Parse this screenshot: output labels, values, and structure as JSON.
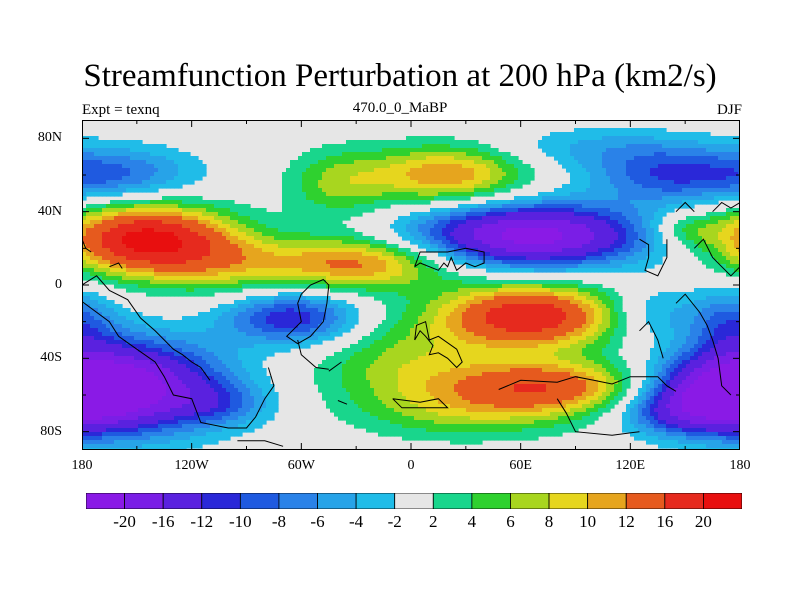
{
  "title": "Streamfunction Perturbation at 200 hPa (km2/s)",
  "left_subtitle": "Expt = texnq",
  "center_subtitle": "470.0_0_MaBP",
  "right_subtitle": "DJF",
  "lat_labels": [
    "80N",
    "40N",
    "0",
    "40S",
    "80S"
  ],
  "lat_values": [
    80,
    40,
    0,
    -40,
    -80
  ],
  "lon_labels": [
    "180",
    "120W",
    "60W",
    "0",
    "60E",
    "120E",
    "180"
  ],
  "lon_values": [
    -180,
    -120,
    -60,
    0,
    60,
    120,
    180
  ],
  "colorbar": {
    "labels": [
      "-20",
      "-16",
      "-12",
      "-10",
      "-8",
      "-6",
      "-4",
      "-2",
      "2",
      "4",
      "6",
      "8",
      "10",
      "12",
      "16",
      "20"
    ],
    "colors": [
      "#8a1ae6",
      "#7a1ee6",
      "#5a21df",
      "#2a28d8",
      "#1f5ae0",
      "#2a82e8",
      "#27a3e8",
      "#20bce8",
      "#e6e6e6",
      "#19d68c",
      "#2fd12f",
      "#a8d61f",
      "#e6d61e",
      "#e6a51e",
      "#e65a1e",
      "#e62a1e",
      "#e80f0f"
    ]
  },
  "fields": {
    "lon_range": [
      -180,
      180
    ],
    "lat_range": [
      -90,
      90
    ],
    "background_color": "#e6e6e6",
    "blobs": [
      {
        "lon": -146,
        "lat": 25,
        "amp": 21,
        "rx": 48,
        "ry": 20
      },
      {
        "lon": -105,
        "lat": 12,
        "amp": 6,
        "rx": 40,
        "ry": 18
      },
      {
        "lon": -30,
        "lat": 12,
        "amp": 13,
        "rx": 55,
        "ry": 15
      },
      {
        "lon": 20,
        "lat": 60,
        "amp": 12,
        "rx": 45,
        "ry": 17
      },
      {
        "lon": -40,
        "lat": 55,
        "amp": 6,
        "rx": 30,
        "ry": 20
      },
      {
        "lon": 150,
        "lat": 30,
        "amp": 5,
        "rx": 20,
        "ry": 10
      },
      {
        "lon": 65,
        "lat": -17,
        "amp": 19,
        "rx": 50,
        "ry": 18
      },
      {
        "lon": 75,
        "lat": -55,
        "amp": 14,
        "rx": 55,
        "ry": 15
      },
      {
        "lon": 0,
        "lat": -45,
        "amp": 7,
        "rx": 55,
        "ry": 28
      },
      {
        "lon": 40,
        "lat": -70,
        "amp": 5,
        "rx": 60,
        "ry": 15
      },
      {
        "lon": 65,
        "lat": 27,
        "amp": -22,
        "rx": 65,
        "ry": 18
      },
      {
        "lon": 140,
        "lat": 60,
        "amp": -9,
        "rx": 45,
        "ry": 16
      },
      {
        "lon": -160,
        "lat": 60,
        "amp": -8,
        "rx": 45,
        "ry": 16
      },
      {
        "lon": -155,
        "lat": -55,
        "amp": -20,
        "rx": 55,
        "ry": 26
      },
      {
        "lon": -65,
        "lat": -18,
        "amp": -12,
        "rx": 38,
        "ry": 15
      },
      {
        "lon": 170,
        "lat": -60,
        "amp": -18,
        "rx": 40,
        "ry": 20
      },
      {
        "lon": 175,
        "lat": -20,
        "amp": -8,
        "rx": 25,
        "ry": 20
      },
      {
        "lon": 130,
        "lat": -15,
        "amp": -5,
        "rx": 25,
        "ry": 15
      },
      {
        "lon": 140,
        "lat": -70,
        "amp": -6,
        "rx": 30,
        "ry": 12
      },
      {
        "lon": -105,
        "lat": -65,
        "amp": -5,
        "rx": 30,
        "ry": 12
      },
      {
        "lon": 100,
        "lat": 75,
        "amp": -4,
        "rx": 60,
        "ry": 12
      }
    ]
  },
  "coastlines": [
    [
      [
        -180,
        -9
      ],
      [
        -165,
        -20
      ],
      [
        -160,
        -28
      ],
      [
        -150,
        -35
      ],
      [
        -140,
        -42
      ],
      [
        -135,
        -50
      ],
      [
        -130,
        -60
      ],
      [
        -120,
        -62
      ],
      [
        -115,
        -75
      ],
      [
        -100,
        -78
      ],
      [
        -90,
        -78
      ],
      [
        -85,
        -72
      ],
      [
        -80,
        -62
      ],
      [
        -75,
        -55
      ],
      [
        -78,
        -45
      ]
    ],
    [
      [
        -180,
        0
      ],
      [
        -172,
        5
      ],
      [
        -165,
        -3
      ],
      [
        -155,
        -8
      ],
      [
        -148,
        -18
      ],
      [
        -140,
        -25
      ],
      [
        -135,
        -30
      ],
      [
        -130,
        -35
      ],
      [
        -125,
        -38
      ],
      [
        -120,
        -42
      ],
      [
        -115,
        -45
      ],
      [
        -110,
        -52
      ]
    ],
    [
      [
        -95,
        -85
      ],
      [
        -80,
        -85
      ],
      [
        -70,
        -88
      ]
    ],
    [
      [
        -180,
        25
      ],
      [
        -178,
        20
      ],
      [
        -175,
        18
      ]
    ],
    [
      [
        -165,
        10
      ],
      [
        -160,
        12
      ],
      [
        -158,
        9
      ]
    ],
    [
      [
        -60,
        -5
      ],
      [
        -55,
        0
      ],
      [
        -48,
        3
      ],
      [
        -45,
        0
      ],
      [
        -46,
        -10
      ],
      [
        -48,
        -20
      ],
      [
        -55,
        -28
      ],
      [
        -62,
        -32
      ],
      [
        -68,
        -28
      ],
      [
        -60,
        -20
      ],
      [
        -62,
        -10
      ],
      [
        -60,
        -5
      ]
    ],
    [
      [
        -62,
        -30
      ],
      [
        -60,
        -38
      ],
      [
        -52,
        -45
      ],
      [
        -45,
        -46
      ]
    ],
    [
      [
        -45,
        -47
      ],
      [
        -38,
        -42
      ]
    ],
    [
      [
        -40,
        -63
      ],
      [
        -35,
        -65
      ]
    ],
    [
      [
        -10,
        -62
      ],
      [
        -5,
        -67
      ],
      [
        20,
        -67
      ],
      [
        15,
        -62
      ],
      [
        5,
        -64
      ],
      [
        -10,
        -62
      ]
    ],
    [
      [
        2,
        -30
      ],
      [
        5,
        -25
      ],
      [
        8,
        -28
      ],
      [
        12,
        -33
      ],
      [
        10,
        -38
      ],
      [
        15,
        -37
      ],
      [
        20,
        -40
      ],
      [
        25,
        -45
      ],
      [
        28,
        -42
      ],
      [
        25,
        -35
      ],
      [
        15,
        -28
      ],
      [
        10,
        -30
      ],
      [
        8,
        -20
      ],
      [
        3,
        -22
      ],
      [
        2,
        -30
      ]
    ],
    [
      [
        2,
        10
      ],
      [
        5,
        12
      ],
      [
        10,
        10
      ],
      [
        15,
        8
      ],
      [
        18,
        12
      ],
      [
        20,
        10
      ],
      [
        22,
        15
      ],
      [
        25,
        8
      ],
      [
        30,
        12
      ],
      [
        35,
        10
      ],
      [
        40,
        12
      ],
      [
        40,
        18
      ],
      [
        30,
        20
      ],
      [
        20,
        18
      ],
      [
        5,
        18
      ],
      [
        2,
        10
      ]
    ],
    [
      [
        48,
        -57
      ],
      [
        60,
        -52
      ],
      [
        80,
        -53
      ],
      [
        90,
        -50
      ],
      [
        100,
        -52
      ],
      [
        110,
        -54
      ],
      [
        120,
        -50
      ],
      [
        135,
        -50
      ],
      [
        140,
        -55
      ],
      [
        145,
        -58
      ]
    ],
    [
      [
        80,
        -62
      ],
      [
        85,
        -70
      ],
      [
        90,
        -80
      ],
      [
        110,
        -82
      ],
      [
        125,
        -80
      ]
    ],
    [
      [
        125,
        -25
      ],
      [
        130,
        -20
      ],
      [
        135,
        -30
      ],
      [
        138,
        -40
      ]
    ],
    [
      [
        145,
        -10
      ],
      [
        150,
        -5
      ],
      [
        158,
        -15
      ],
      [
        162,
        -22
      ],
      [
        165,
        -30
      ],
      [
        168,
        -40
      ],
      [
        170,
        -55
      ],
      [
        175,
        -60
      ]
    ],
    [
      [
        125,
        25
      ],
      [
        130,
        22
      ],
      [
        130,
        15
      ],
      [
        128,
        8
      ],
      [
        135,
        5
      ],
      [
        140,
        15
      ],
      [
        140,
        25
      ]
    ],
    [
      [
        145,
        40
      ],
      [
        150,
        45
      ],
      [
        155,
        40
      ]
    ],
    [
      [
        155,
        20
      ],
      [
        160,
        25
      ],
      [
        165,
        15
      ],
      [
        170,
        10
      ],
      [
        175,
        5
      ],
      [
        180,
        10
      ]
    ],
    [
      [
        165,
        40
      ],
      [
        170,
        45
      ],
      [
        175,
        42
      ],
      [
        180,
        45
      ]
    ]
  ]
}
